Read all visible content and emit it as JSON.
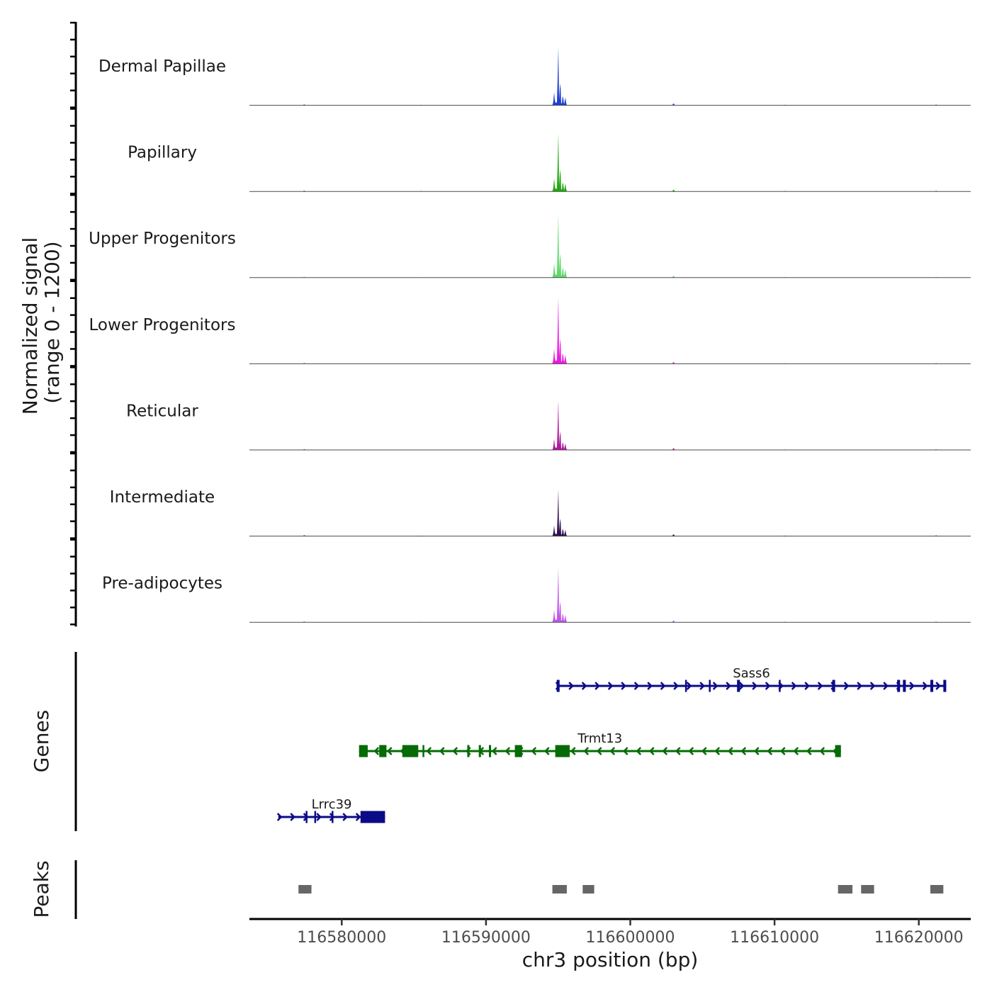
{
  "chart_data": {
    "type": "genome-track",
    "region": {
      "chrom": "chr3",
      "start": 116573600,
      "end": 116623600
    },
    "xlabel": "chr3 position (bp)",
    "xticks": [
      116580000,
      116590000,
      116600000,
      116610000,
      116620000
    ],
    "xtick_labels": [
      "116580000",
      "116590000",
      "116600000",
      "116610000",
      "116620000"
    ],
    "coverage": {
      "ylabel_line1": "Normalized signal",
      "ylabel_line2": "(range 0 - 1200)",
      "ylim": [
        0,
        1200
      ],
      "tracks": [
        {
          "name": "Dermal Papillae",
          "color": "#1f3fd1",
          "peak_height": 1.0
        },
        {
          "name": "Papillary",
          "color": "#21a90f",
          "peak_height": 1.0
        },
        {
          "name": "Upper Progenitors",
          "color": "#5ed86a",
          "peak_height": 1.1
        },
        {
          "name": "Lower Progenitors",
          "color": "#e81be0",
          "peak_height": 1.15
        },
        {
          "name": "Reticular",
          "color": "#b0169f",
          "peak_height": 0.85
        },
        {
          "name": "Intermediate",
          "color": "#32104f",
          "peak_height": 0.8
        },
        {
          "name": "Pre-adipocytes",
          "color": "#c055ea",
          "peak_height": 0.95
        }
      ]
    },
    "genes": {
      "ylabel": "Genes",
      "items": [
        {
          "name": "Sass6",
          "strand": "+",
          "color": "#0b0b87",
          "start": 116594900,
          "end": 116621900,
          "exons": [
            [
              116594900,
              116595100
            ],
            [
              116603800,
              116603850
            ],
            [
              116605450,
              116605500
            ],
            [
              116607400,
              116607600
            ],
            [
              116610300,
              116610400
            ],
            [
              116614000,
              116614200
            ],
            [
              116618500,
              116618700
            ],
            [
              116618900,
              116619100
            ],
            [
              116620800,
              116621000
            ],
            [
              116621700,
              116621900
            ]
          ]
        },
        {
          "name": "Trmt13",
          "strand": "-",
          "color": "#066b06",
          "start": 116581200,
          "end": 116614600,
          "exons": [
            [
              116581200,
              116581800
            ],
            [
              116582600,
              116583100
            ],
            [
              116584200,
              116585300
            ],
            [
              116585600,
              116585700
            ],
            [
              116588700,
              116588850
            ],
            [
              116589500,
              116589650
            ],
            [
              116590200,
              116590350
            ],
            [
              116592000,
              116592500
            ],
            [
              116594800,
              116595800
            ],
            [
              116614200,
              116614600
            ]
          ]
        },
        {
          "name": "Lrrc39",
          "strand": "+",
          "color": "#0b0b87",
          "start": 116575600,
          "end": 116583000,
          "exons": [
            [
              116577500,
              116577600
            ],
            [
              116578100,
              116578200
            ],
            [
              116579300,
              116579400
            ],
            [
              116581300,
              116583000
            ]
          ]
        }
      ]
    },
    "peaks": {
      "ylabel": "Peaks",
      "color": "#666666",
      "items": [
        [
          116577000,
          116577900
        ],
        [
          116594600,
          116595600
        ],
        [
          116596700,
          116597500
        ],
        [
          116614400,
          116615400
        ],
        [
          116616000,
          116616900
        ],
        [
          116620800,
          116621700
        ]
      ]
    }
  }
}
